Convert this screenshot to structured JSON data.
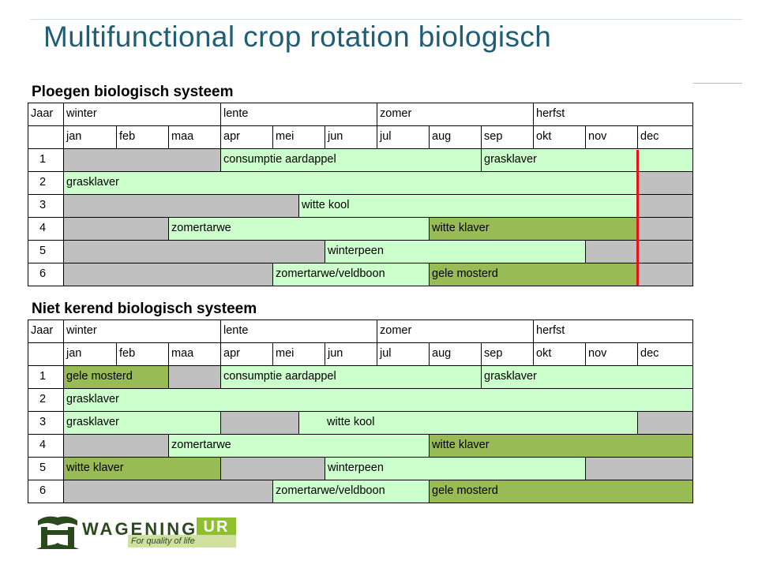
{
  "title": "Multifunctional crop rotation biologisch",
  "colors": {
    "gray": "#c0c0c0",
    "light_green": "#ccffcc",
    "dark_green": "#99bb55",
    "red_marker": "#e8121b"
  },
  "header": {
    "year_label": "Jaar",
    "seasons": [
      "winter",
      "lente",
      "zomer",
      "herfst"
    ],
    "months": [
      "jan",
      "feb",
      "maa",
      "apr",
      "mei",
      "jun",
      "jul",
      "aug",
      "sep",
      "okt",
      "nov",
      "dec"
    ]
  },
  "tables": [
    {
      "title": "Ploegen biologisch systeem",
      "rows": [
        {
          "year": "1",
          "segments": [
            {
              "label": "",
              "color": "gray"
            },
            {
              "label": "consumptie aardappel",
              "color": "light"
            },
            {
              "label": "grasklaver",
              "color": "light"
            }
          ]
        },
        {
          "year": "2",
          "segments": [
            {
              "label": "grasklaver",
              "color": "light"
            },
            {
              "label": "",
              "color": "gray"
            }
          ]
        },
        {
          "year": "3",
          "segments": [
            {
              "label": "",
              "color": "gray"
            },
            {
              "label": "witte kool",
              "color": "light"
            },
            {
              "label": "",
              "color": "gray"
            }
          ]
        },
        {
          "year": "4",
          "segments": [
            {
              "label": "",
              "color": "gray"
            },
            {
              "label": "zomertarwe",
              "color": "light"
            },
            {
              "label": "witte klaver",
              "color": "dark"
            },
            {
              "label": "",
              "color": "gray"
            }
          ]
        },
        {
          "year": "5",
          "segments": [
            {
              "label": "",
              "color": "gray"
            },
            {
              "label": "winterpeen",
              "color": "light"
            },
            {
              "label": "",
              "color": "gray"
            }
          ]
        },
        {
          "year": "6",
          "segments": [
            {
              "label": "",
              "color": "gray"
            },
            {
              "label": "zomertarwe/veldboon",
              "color": "light"
            },
            {
              "label": "gele mosterd",
              "color": "dark"
            },
            {
              "label": "",
              "color": "gray"
            }
          ]
        }
      ]
    },
    {
      "title": "Niet kerend biologisch systeem",
      "rows": [
        {
          "year": "1",
          "segments": [
            {
              "label": "gele mosterd",
              "color": "dark"
            },
            {
              "label": "",
              "color": "gray"
            },
            {
              "label": "consumptie aardappel",
              "color": "light"
            },
            {
              "label": "grasklaver",
              "color": "light"
            }
          ]
        },
        {
          "year": "2",
          "segments": [
            {
              "label": "grasklaver",
              "color": "light"
            }
          ]
        },
        {
          "year": "3",
          "segments": [
            {
              "label": "grasklaver",
              "color": "light"
            },
            {
              "label": "",
              "color": "gray"
            },
            {
              "label": "witte kool",
              "color": "light"
            },
            {
              "label": "",
              "color": "gray"
            }
          ]
        },
        {
          "year": "4",
          "segments": [
            {
              "label": "",
              "color": "gray"
            },
            {
              "label": "zomertarwe",
              "color": "light"
            },
            {
              "label": "witte klaver",
              "color": "dark"
            }
          ]
        },
        {
          "year": "5",
          "segments": [
            {
              "label": "witte klaver",
              "color": "dark"
            },
            {
              "label": "",
              "color": "gray"
            },
            {
              "label": "winterpeen",
              "color": "light"
            },
            {
              "label": "",
              "color": "gray"
            }
          ]
        },
        {
          "year": "6",
          "segments": [
            {
              "label": "",
              "color": "gray"
            },
            {
              "label": "zomertarwe/veldboon",
              "color": "light"
            },
            {
              "label": "gele mosterd",
              "color": "dark"
            }
          ]
        }
      ]
    }
  ],
  "logo": {
    "name": "WAGENINGEN",
    "suffix": "UR",
    "tagline": "For quality of life"
  }
}
